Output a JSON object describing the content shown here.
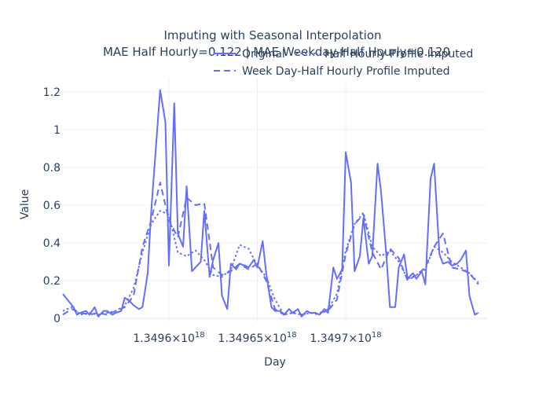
{
  "chart_data": {
    "type": "line",
    "title": "Imputing with Seasonal Interpolation",
    "subtitle": "MAE Half Hourly=0.122 | MAE Weekday-Half Hourly=0.120",
    "xlabel": "Day",
    "ylabel": "Value",
    "xlim": [
      1.34954e+18,
      1.34978e+18
    ],
    "ylim": [
      -0.02,
      1.27
    ],
    "grid": true,
    "legend_position": "top-right",
    "x_ticks": [
      {
        "value": 1.3496e+18,
        "label": "1.3496×10",
        "exp": "18"
      },
      {
        "value": 1.34965e+18,
        "label": "1.34965×10",
        "exp": "18"
      },
      {
        "value": 1.3497e+18,
        "label": "1.3497×10",
        "exp": "18"
      }
    ],
    "y_ticks": [
      {
        "value": 0,
        "label": "0"
      },
      {
        "value": 0.2,
        "label": "0.2"
      },
      {
        "value": 0.4,
        "label": "0.4"
      },
      {
        "value": 0.6,
        "label": "0.6"
      },
      {
        "value": 0.8,
        "label": "0.8"
      },
      {
        "value": 1,
        "label": "1"
      },
      {
        "value": 1.2,
        "label": "1.2"
      }
    ],
    "series": [
      {
        "name": "Original",
        "dash": "solid",
        "color": "#636efa",
        "points": [
          [
            1.34954e+18,
            0.13
          ],
          [
            1.349546e+18,
            0.06
          ],
          [
            1.349548e+18,
            0.02
          ],
          [
            1.34955e+18,
            0.03
          ],
          [
            1.349553e+18,
            0.04
          ],
          [
            1.349555e+18,
            0.02
          ],
          [
            1.349558e+18,
            0.06
          ],
          [
            1.34956e+18,
            0.01
          ],
          [
            1.349563e+18,
            0.04
          ],
          [
            1.349565e+18,
            0.04
          ],
          [
            1.349568e+18,
            0.02
          ],
          [
            1.34957e+18,
            0.03
          ],
          [
            1.349573e+18,
            0.04
          ],
          [
            1.349575e+18,
            0.11
          ],
          [
            1.349578e+18,
            0.09
          ],
          [
            1.34958e+18,
            0.07
          ],
          [
            1.349583e+18,
            0.05
          ],
          [
            1.349585e+18,
            0.06
          ],
          [
            1.349588e+18,
            0.24
          ],
          [
            1.34959e+18,
            0.57
          ],
          [
            1.349595e+18,
            1.21
          ],
          [
            1.349598e+18,
            1.04
          ],
          [
            1.3496e+18,
            0.28
          ],
          [
            1.349603e+18,
            1.14
          ],
          [
            1.349605e+18,
            0.45
          ],
          [
            1.349608e+18,
            0.38
          ],
          [
            1.34961e+18,
            0.7
          ],
          [
            1.349613e+18,
            0.25
          ],
          [
            1.349615e+18,
            0.27
          ],
          [
            1.349618e+18,
            0.3
          ],
          [
            1.34962e+18,
            0.57
          ],
          [
            1.349623e+18,
            0.22
          ],
          [
            1.349625e+18,
            0.31
          ],
          [
            1.349628e+18,
            0.4
          ],
          [
            1.34963e+18,
            0.12
          ],
          [
            1.349633e+18,
            0.05
          ],
          [
            1.349635e+18,
            0.29
          ],
          [
            1.349638e+18,
            0.26
          ],
          [
            1.34964e+18,
            0.29
          ],
          [
            1.349643e+18,
            0.28
          ],
          [
            1.349645e+18,
            0.27
          ],
          [
            1.349648e+18,
            0.31
          ],
          [
            1.34965e+18,
            0.27
          ],
          [
            1.349653e+18,
            0.41
          ],
          [
            1.349655e+18,
            0.24
          ],
          [
            1.349658e+18,
            0.06
          ],
          [
            1.34966e+18,
            0.04
          ],
          [
            1.349663e+18,
            0.04
          ],
          [
            1.349665e+18,
            0.02
          ],
          [
            1.349668e+18,
            0.05
          ],
          [
            1.34967e+18,
            0.03
          ],
          [
            1.349673e+18,
            0.05
          ],
          [
            1.349675e+18,
            0.01
          ],
          [
            1.349678e+18,
            0.04
          ],
          [
            1.34968e+18,
            0.03
          ],
          [
            1.349683e+18,
            0.03
          ],
          [
            1.349685e+18,
            0.02
          ],
          [
            1.349688e+18,
            0.05
          ],
          [
            1.34969e+18,
            0.03
          ],
          [
            1.349693e+18,
            0.27
          ],
          [
            1.349695e+18,
            0.21
          ],
          [
            1.349698e+18,
            0.26
          ],
          [
            1.3497e+18,
            0.88
          ],
          [
            1.349703e+18,
            0.72
          ],
          [
            1.349705e+18,
            0.25
          ],
          [
            1.349708e+18,
            0.33
          ],
          [
            1.34971e+18,
            0.53
          ],
          [
            1.349713e+18,
            0.29
          ],
          [
            1.349715e+18,
            0.33
          ],
          [
            1.349718e+18,
            0.82
          ],
          [
            1.34972e+18,
            0.67
          ],
          [
            1.349723e+18,
            0.33
          ],
          [
            1.349725e+18,
            0.06
          ],
          [
            1.349728e+18,
            0.06
          ],
          [
            1.34973e+18,
            0.27
          ],
          [
            1.349733e+18,
            0.34
          ],
          [
            1.349735e+18,
            0.21
          ],
          [
            1.349738e+18,
            0.24
          ],
          [
            1.34974e+18,
            0.21
          ],
          [
            1.349743e+18,
            0.25
          ],
          [
            1.349745e+18,
            0.18
          ],
          [
            1.349748e+18,
            0.74
          ],
          [
            1.34975e+18,
            0.82
          ],
          [
            1.349753e+18,
            0.34
          ],
          [
            1.349755e+18,
            0.29
          ],
          [
            1.349758e+18,
            0.3
          ],
          [
            1.34976e+18,
            0.28
          ],
          [
            1.349763e+18,
            0.29
          ],
          [
            1.349765e+18,
            0.31
          ],
          [
            1.349768e+18,
            0.36
          ],
          [
            1.34977e+18,
            0.12
          ],
          [
            1.349773e+18,
            0.02
          ],
          [
            1.349775e+18,
            0.03
          ]
        ]
      },
      {
        "name": "Half Hourly Profile Imputed",
        "dash": "dot",
        "color": "#636efa",
        "points": [
          [
            1.34954e+18,
            0.04
          ],
          [
            1.349545e+18,
            0.06
          ],
          [
            1.34955e+18,
            0.02
          ],
          [
            1.349555e+18,
            0.03
          ],
          [
            1.34956e+18,
            0.02
          ],
          [
            1.349565e+18,
            0.03
          ],
          [
            1.34957e+18,
            0.04
          ],
          [
            1.349575e+18,
            0.07
          ],
          [
            1.34958e+18,
            0.16
          ],
          [
            1.349585e+18,
            0.35
          ],
          [
            1.34959e+18,
            0.5
          ],
          [
            1.349595e+18,
            0.57
          ],
          [
            1.3496e+18,
            0.55
          ],
          [
            1.349605e+18,
            0.35
          ],
          [
            1.34961e+18,
            0.33
          ],
          [
            1.349615e+18,
            0.36
          ],
          [
            1.34962e+18,
            0.31
          ],
          [
            1.349625e+18,
            0.23
          ],
          [
            1.34963e+18,
            0.22
          ],
          [
            1.349635e+18,
            0.26
          ],
          [
            1.34964e+18,
            0.39
          ],
          [
            1.349645e+18,
            0.37
          ],
          [
            1.34965e+18,
            0.28
          ],
          [
            1.349655e+18,
            0.22
          ],
          [
            1.34966e+18,
            0.1
          ],
          [
            1.349665e+18,
            0.02
          ],
          [
            1.34967e+18,
            0.03
          ],
          [
            1.349675e+18,
            0.02
          ],
          [
            1.34968e+18,
            0.03
          ],
          [
            1.349685e+18,
            0.02
          ],
          [
            1.34969e+18,
            0.05
          ],
          [
            1.349695e+18,
            0.13
          ],
          [
            1.3497e+18,
            0.36
          ],
          [
            1.349705e+18,
            0.5
          ],
          [
            1.34971e+18,
            0.56
          ],
          [
            1.349715e+18,
            0.38
          ],
          [
            1.34972e+18,
            0.33
          ],
          [
            1.349725e+18,
            0.36
          ],
          [
            1.34973e+18,
            0.3
          ],
          [
            1.349735e+18,
            0.21
          ],
          [
            1.34974e+18,
            0.23
          ],
          [
            1.349745e+18,
            0.26
          ],
          [
            1.34975e+18,
            0.38
          ],
          [
            1.349755e+18,
            0.35
          ],
          [
            1.34976e+18,
            0.3
          ],
          [
            1.349765e+18,
            0.27
          ],
          [
            1.34977e+18,
            0.24
          ],
          [
            1.349775e+18,
            0.19
          ]
        ]
      },
      {
        "name": "Week Day-Half Hourly Profile Imputed",
        "dash": "dash",
        "color": "#636efa",
        "points": [
          [
            1.34954e+18,
            0.02
          ],
          [
            1.349545e+18,
            0.05
          ],
          [
            1.34955e+18,
            0.03
          ],
          [
            1.349555e+18,
            0.02
          ],
          [
            1.34956e+18,
            0.03
          ],
          [
            1.349565e+18,
            0.02
          ],
          [
            1.34957e+18,
            0.04
          ],
          [
            1.349575e+18,
            0.06
          ],
          [
            1.34958e+18,
            0.12
          ],
          [
            1.349585e+18,
            0.38
          ],
          [
            1.34959e+18,
            0.52
          ],
          [
            1.349595e+18,
            0.72
          ],
          [
            1.3496e+18,
            0.52
          ],
          [
            1.349605e+18,
            0.43
          ],
          [
            1.34961e+18,
            0.64
          ],
          [
            1.349615e+18,
            0.6
          ],
          [
            1.34962e+18,
            0.61
          ],
          [
            1.349625e+18,
            0.27
          ],
          [
            1.34963e+18,
            0.23
          ],
          [
            1.349635e+18,
            0.25
          ],
          [
            1.34964e+18,
            0.29
          ],
          [
            1.349645e+18,
            0.26
          ],
          [
            1.34965e+18,
            0.29
          ],
          [
            1.349655e+18,
            0.2
          ],
          [
            1.34966e+18,
            0.05
          ],
          [
            1.349665e+18,
            0.02
          ],
          [
            1.34967e+18,
            0.03
          ],
          [
            1.349675e+18,
            0.02
          ],
          [
            1.34968e+18,
            0.03
          ],
          [
            1.349685e+18,
            0.03
          ],
          [
            1.34969e+18,
            0.04
          ],
          [
            1.349695e+18,
            0.1
          ],
          [
            1.3497e+18,
            0.34
          ],
          [
            1.349705e+18,
            0.5
          ],
          [
            1.34971e+18,
            0.55
          ],
          [
            1.349715e+18,
            0.35
          ],
          [
            1.34972e+18,
            0.26
          ],
          [
            1.349725e+18,
            0.37
          ],
          [
            1.34973e+18,
            0.32
          ],
          [
            1.349735e+18,
            0.2
          ],
          [
            1.34974e+18,
            0.23
          ],
          [
            1.349745e+18,
            0.27
          ],
          [
            1.34975e+18,
            0.38
          ],
          [
            1.349755e+18,
            0.45
          ],
          [
            1.34976e+18,
            0.27
          ],
          [
            1.349765e+18,
            0.26
          ],
          [
            1.34977e+18,
            0.24
          ],
          [
            1.349775e+18,
            0.18
          ]
        ]
      }
    ]
  }
}
